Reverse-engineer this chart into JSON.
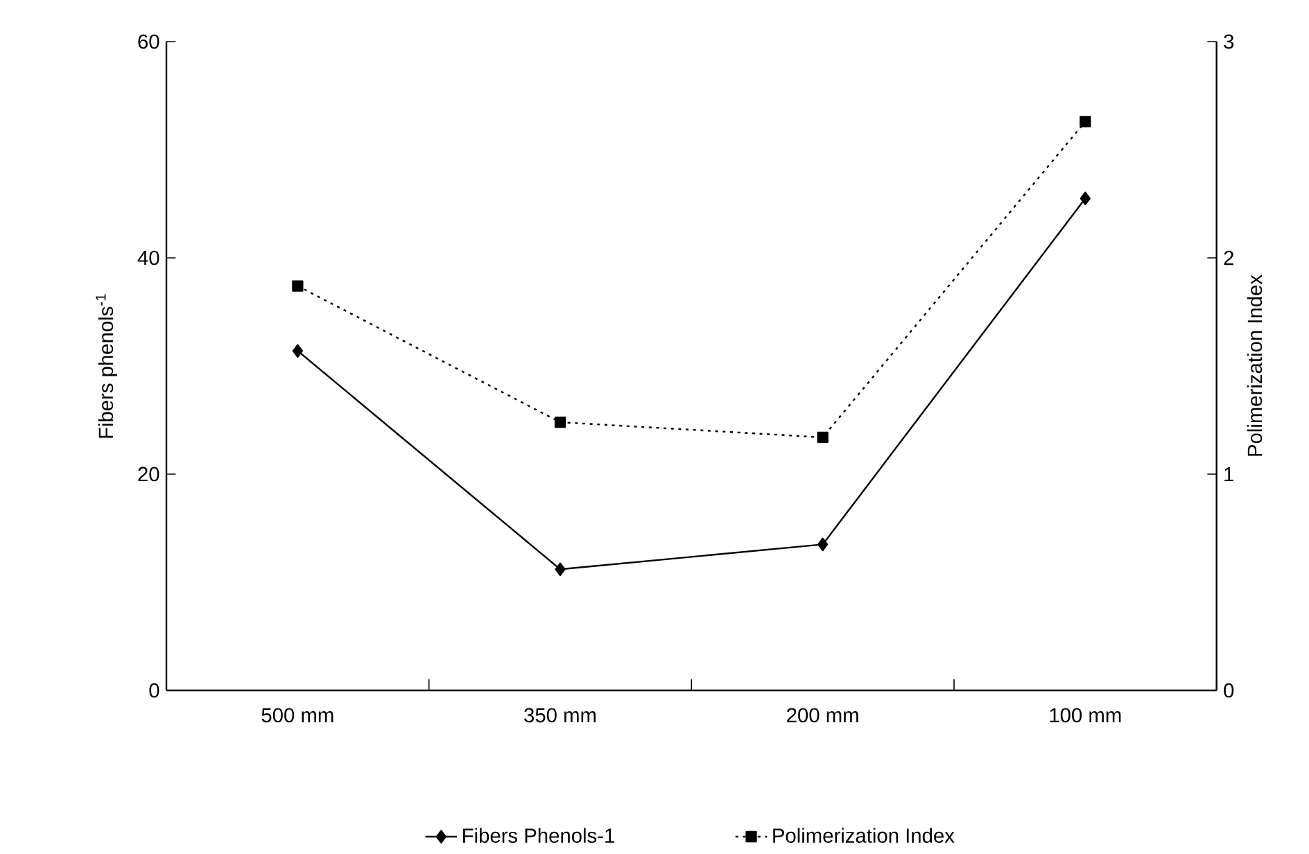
{
  "chart_data": {
    "type": "line",
    "ylabel": "Fibers phenols$^{-1}$",
    "y2label": "Polimerization Index",
    "categories": [
      "500 mm",
      "350 mm",
      "200 mm",
      "100 mm"
    ],
    "series": [
      {
        "name": "Fibers Phenols-1",
        "color": "#000000",
        "values": [
          31.4,
          11.2,
          13.5,
          45.5
        ],
        "marker": "diamond",
        "line_style": "solid"
      },
      {
        "name": "Polimerization Index",
        "color": "#000000",
        "values": [
          1.87,
          1.24,
          1.17,
          2.63
        ],
        "marker": "square",
        "line_style": "dotted",
        "axis": "y2"
      }
    ],
    "ylim": [
      0,
      60
    ],
    "yticks": [
      0,
      20,
      40,
      60
    ],
    "y2lim": [
      0,
      3
    ],
    "y2ticks": [
      0,
      1,
      2,
      3
    ],
    "grid": false,
    "legend": "bottom"
  }
}
